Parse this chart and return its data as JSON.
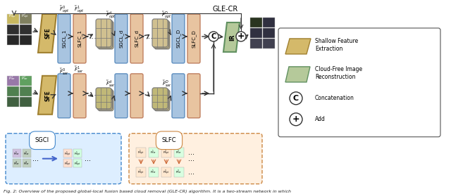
{
  "title": "GLE-CR",
  "caption": "Fig. 2: Overview of the proposed global-local fusion based cloud removal (GLE-CR) algorithm. It is a two-stream network in which",
  "bg_color": "#ffffff",
  "legend_items": [
    {
      "label": "Shallow Feature\nExtraction",
      "color": "#d4b96a"
    },
    {
      "label": "Cloud-Free Image\nReconstruction",
      "color": "#b5c99a"
    },
    {
      "label": "Concatenation",
      "symbol": "C"
    },
    {
      "label": "Add",
      "symbol": "+"
    }
  ],
  "sgcl_color": "#a8c4e0",
  "slfc_color": "#e8c4a0",
  "sfe_color": "#d4b96a",
  "ir_color": "#b5c99a",
  "sgci_box_color": "#a8c4e0",
  "slfc_box_color": "#e8c4a0"
}
